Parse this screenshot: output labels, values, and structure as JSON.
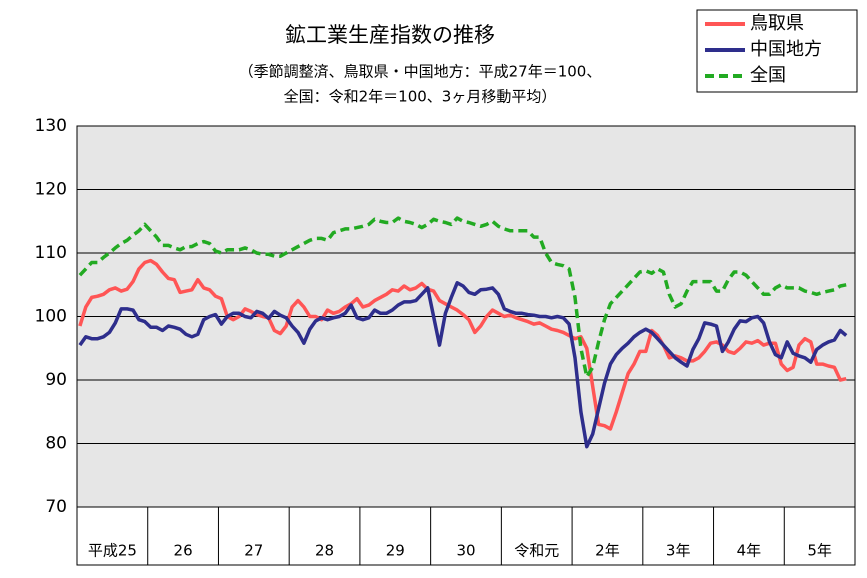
{
  "chart_data": {
    "type": "line",
    "title": "鉱工業生産指数の推移",
    "subtitle": [
      "（季節調整済、鳥取県・中国地方：平成27年＝100、",
      "全国：令和2年＝100、3ヶ月移動平均）"
    ],
    "categories": [
      "平成25",
      "26",
      "27",
      "28",
      "29",
      "30",
      "令和元",
      "2年",
      "3年",
      "4年",
      "5年"
    ],
    "ylim": [
      70,
      130
    ],
    "yticks": [
      70,
      80,
      90,
      100,
      110,
      120,
      130
    ],
    "grid": true,
    "legend": "top-right",
    "series": [
      {
        "name": "鳥取県",
        "color": "#ff5555",
        "dash": false,
        "values": [
          [
            98.5,
            101.5,
            103,
            103.2,
            103.5,
            104.2,
            104.5,
            104,
            104.3,
            105.5,
            107.5,
            108.5
          ],
          [
            108.8,
            108.2,
            107,
            106,
            105.8,
            103.8,
            104,
            104.2,
            105.8,
            104.5,
            104.2,
            103.2
          ],
          [
            102.8,
            100,
            99.5,
            100,
            101.2,
            100.8,
            100.3,
            100,
            99.8,
            97.8,
            97.3,
            98.5
          ],
          [
            101.5,
            102.5,
            101.5,
            100,
            100,
            99.5,
            101,
            100.5,
            100.8,
            101.5,
            102,
            102.8
          ],
          [
            101.5,
            101.8,
            102.5,
            103,
            103.5,
            104.2,
            104,
            104.8,
            104.2,
            104.5,
            105.2,
            104.3
          ],
          [
            104,
            102.5,
            102,
            101.5,
            101,
            100.3,
            99.5,
            97.5,
            98.5,
            100,
            101,
            100.5
          ],
          [
            100,
            100.2,
            99.8,
            99.5,
            99.2,
            98.8,
            99,
            98.5,
            98,
            97.8,
            97.5,
            97
          ],
          [
            96.5,
            96.8,
            95,
            89,
            83,
            82.8,
            82.3,
            85,
            88,
            91,
            92.5,
            94.5
          ],
          [
            94.5,
            97.8,
            97,
            95.5,
            93.5,
            93.8,
            93.5,
            93,
            93,
            93.5,
            94.5,
            95.8
          ],
          [
            96,
            95.5,
            94.5,
            94.2,
            95,
            96,
            95.8,
            96.2,
            95.5,
            95.8,
            95.8,
            92.5
          ],
          [
            91.5,
            92,
            95.5,
            96.5,
            96,
            92.5,
            92.5,
            92.2,
            92,
            90,
            90.2
          ]
        ]
      },
      {
        "name": "中国地方",
        "color": "#2e2e8c",
        "dash": false,
        "values": [
          [
            95.5,
            96.8,
            96.5,
            96.5,
            96.8,
            97.5,
            99,
            101.2,
            101.2,
            101,
            99.5,
            99.2
          ],
          [
            98.3,
            98.3,
            97.8,
            98.5,
            98.3,
            98,
            97.2,
            96.8,
            97.2,
            99.5,
            100,
            100.3
          ],
          [
            98.8,
            100,
            100.5,
            100.5,
            100,
            99.8,
            100.8,
            100.5,
            99.7,
            100.8,
            100.2,
            99.8
          ],
          [
            98.5,
            97.5,
            95.8,
            98,
            99.3,
            99.8,
            99.5,
            99.8,
            100,
            100.5,
            101.8,
            99.8
          ],
          [
            99.5,
            99.8,
            101,
            100.5,
            100.5,
            101,
            101.8,
            102.3,
            102.3,
            102.5,
            103.5,
            104.5
          ],
          [
            100,
            95.5,
            100.5,
            103,
            105.3,
            104.8,
            103.8,
            103.5,
            104.2,
            104.3,
            104.5,
            103.5
          ],
          [
            101.2,
            100.8,
            100.5,
            100.5,
            100.3,
            100.2,
            100,
            100,
            99.8,
            100,
            99.8,
            98.8
          ],
          [
            93.5,
            85,
            79.5,
            81.5,
            85.5,
            89.5,
            92.5,
            94,
            95,
            95.8,
            96.8,
            97.5
          ],
          [
            98,
            97.5,
            96.5,
            95.5,
            94.5,
            93.5,
            92.8,
            92.2,
            94.8,
            96.5,
            99,
            98.8
          ],
          [
            98.5,
            94.5,
            96,
            98,
            99.3,
            99.2,
            99.8,
            100,
            99,
            96,
            94,
            93.5
          ],
          [
            96,
            94.2,
            93.8,
            93.5,
            92.8,
            94.8,
            95.5,
            96,
            96.3,
            97.8,
            97
          ]
        ]
      },
      {
        "name": "全国",
        "color": "#22aa22",
        "dash": true,
        "values": [
          [
            106.5,
            107.5,
            108.5,
            108.5,
            109.3,
            110,
            110.8,
            111.5,
            112,
            112.8,
            113.5,
            114.5
          ],
          [
            113.5,
            112.5,
            111.2,
            111.2,
            110.8,
            110.5,
            111,
            111,
            111.5,
            111.8,
            111.5,
            110.3
          ],
          [
            110,
            110.5,
            110.5,
            110.5,
            110.8,
            110.5,
            110,
            109.8,
            109.8,
            109.5,
            109.5,
            110
          ],
          [
            110.5,
            111,
            111.5,
            112,
            112.3,
            112.3,
            112,
            113.2,
            113.5,
            113.8,
            113.8,
            114
          ],
          [
            114.2,
            114.5,
            115.3,
            115,
            114.8,
            114.8,
            115.5,
            115,
            114.8,
            114.5,
            114,
            114.5
          ],
          [
            115.3,
            115,
            114.8,
            114.5,
            115.5,
            115,
            114.8,
            114.5,
            114.2,
            114.5,
            115,
            114.2
          ],
          [
            113.8,
            113.5,
            113.5,
            113.5,
            113.5,
            112.5,
            112.5,
            110,
            108.5,
            108.2,
            108,
            107.5
          ],
          [
            103,
            95,
            90.5,
            92,
            96,
            99.5,
            102,
            103,
            104,
            105,
            106,
            107
          ],
          [
            107.2,
            106.8,
            107.5,
            107,
            103.5,
            101.5,
            102,
            104,
            105.5,
            105.5,
            105.5,
            105.5
          ],
          [
            104,
            104,
            105.8,
            107,
            107,
            106.5,
            105.5,
            104.5,
            103.5,
            103.5,
            104.5,
            105
          ],
          [
            104.5,
            104.5,
            104.5,
            104,
            103.8,
            103.5,
            103.8,
            104,
            104.2,
            104.8,
            105
          ]
        ]
      }
    ]
  }
}
